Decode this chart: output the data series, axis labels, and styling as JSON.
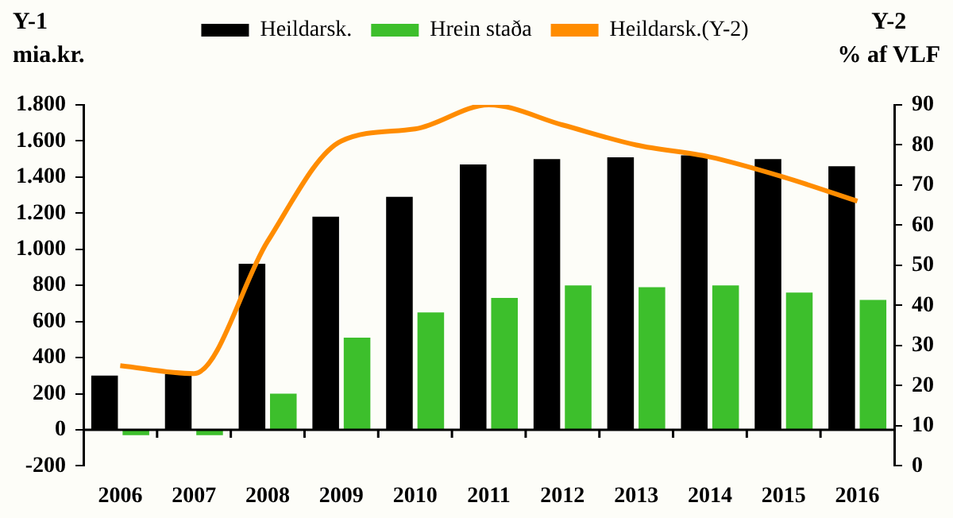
{
  "chart_data": {
    "type": "bar",
    "ylabel": "Y-1\nmia.kr.",
    "y2label": "Y-2\n% af VLF",
    "categories": [
      "2006",
      "2007",
      "2008",
      "2009",
      "2010",
      "2011",
      "2012",
      "2013",
      "2014",
      "2015",
      "2016"
    ],
    "series": [
      {
        "name": "Heildarsk.",
        "color": "#000000",
        "values": [
          300,
          310,
          920,
          1180,
          1290,
          1470,
          1500,
          1510,
          1520,
          1500,
          1460
        ]
      },
      {
        "name": "Hrein staða",
        "color": "#3dbf2c",
        "values": [
          -30,
          -30,
          200,
          510,
          650,
          730,
          800,
          790,
          800,
          760,
          720
        ]
      },
      {
        "name": "Heildarsk.(Y-2)",
        "type": "line",
        "axis": "y2",
        "color": "#ff8c00",
        "values": [
          25,
          23,
          56,
          81,
          84,
          90,
          85,
          80,
          77,
          72,
          66
        ]
      }
    ],
    "ylim": [
      -200,
      1800
    ],
    "yticks": [
      {
        "value": -200,
        "label": "-200"
      },
      {
        "value": 0,
        "label": "0"
      },
      {
        "value": 200,
        "label": "200"
      },
      {
        "value": 400,
        "label": "400"
      },
      {
        "value": 600,
        "label": "600"
      },
      {
        "value": 800,
        "label": "800"
      },
      {
        "value": 1000,
        "label": "1.000"
      },
      {
        "value": 1200,
        "label": "1.200"
      },
      {
        "value": 1400,
        "label": "1.400"
      },
      {
        "value": 1600,
        "label": "1.600"
      },
      {
        "value": 1800,
        "label": "1.800"
      }
    ],
    "y2lim": [
      0,
      90
    ],
    "y2ticks": [
      0,
      10,
      20,
      30,
      40,
      50,
      60,
      70,
      80,
      90
    ],
    "grid": false,
    "legend": "top",
    "marker": "none"
  }
}
